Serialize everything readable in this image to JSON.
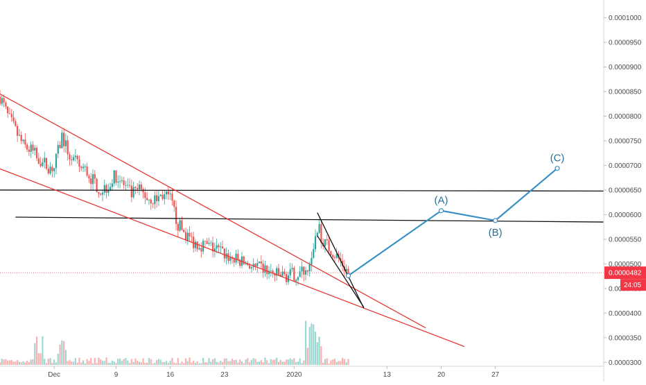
{
  "colors": {
    "up": "#26a69a",
    "down": "#ef5350",
    "projection": "#3c8fc4",
    "trendline": "#e53935",
    "level": "#111111",
    "price_badge": "#f23645"
  },
  "chart_data": {
    "type": "candlestick",
    "y_axis": {
      "position": "right",
      "ylim": [
        2.92e-05,
        0.0001036
      ],
      "ticks": [
        "0.0000300",
        "0.0000350",
        "0.0000400",
        "0.0000450",
        "0.0000500",
        "0.0000550",
        "0.0000600",
        "0.0000650",
        "0.0000700",
        "0.0000750",
        "0.0000800",
        "0.0000850",
        "0.0000900",
        "0.0000950",
        "0.0001000"
      ]
    },
    "x_axis": {
      "xlim": [
        "2019-11-24",
        "2020-02-10"
      ],
      "ticks": [
        {
          "date": "2019-12-01",
          "label": "Dec"
        },
        {
          "date": "2019-12-09",
          "label": "9"
        },
        {
          "date": "2019-12-16",
          "label": "16"
        },
        {
          "date": "2019-12-23",
          "label": "23"
        },
        {
          "date": "2020-01-01",
          "label": "2020"
        },
        {
          "date": "2020-01-13",
          "label": "13"
        },
        {
          "date": "2020-01-20",
          "label": "20"
        },
        {
          "date": "2020-01-27",
          "label": "27"
        }
      ]
    },
    "current_price": {
      "value": "0.0000482",
      "countdown": "24:05"
    },
    "price_path": [
      [
        "2019-11-24",
        8.4e-05
      ],
      [
        "2019-11-25",
        8e-05
      ],
      [
        "2019-11-26",
        7.7e-05
      ],
      [
        "2019-11-27",
        7.4e-05
      ],
      [
        "2019-11-28",
        7.3e-05
      ],
      [
        "2019-11-29",
        7.15e-05
      ],
      [
        "2019-11-30",
        7e-05
      ],
      [
        "2019-12-01",
        6.95e-05
      ],
      [
        "2019-12-02",
        7.6e-05
      ],
      [
        "2019-12-03",
        7.2e-05
      ],
      [
        "2019-12-04",
        7e-05
      ],
      [
        "2019-12-05",
        6.9e-05
      ],
      [
        "2019-12-06",
        6.7e-05
      ],
      [
        "2019-12-07",
        6.5e-05
      ],
      [
        "2019-12-08",
        6.6e-05
      ],
      [
        "2019-12-09",
        6.8e-05
      ],
      [
        "2019-12-10",
        6.6e-05
      ],
      [
        "2019-12-11",
        6.4e-05
      ],
      [
        "2019-12-12",
        6.5e-05
      ],
      [
        "2019-12-13",
        6.35e-05
      ],
      [
        "2019-12-14",
        6.3e-05
      ],
      [
        "2019-12-15",
        6.4e-05
      ],
      [
        "2019-12-16",
        6.3e-05
      ],
      [
        "2019-12-17",
        5.8e-05
      ],
      [
        "2019-12-18",
        5.6e-05
      ],
      [
        "2019-12-19",
        5.45e-05
      ],
      [
        "2019-12-20",
        5.4e-05
      ],
      [
        "2019-12-21",
        5.35e-05
      ],
      [
        "2019-12-22",
        5.3e-05
      ],
      [
        "2019-12-23",
        5.2e-05
      ],
      [
        "2019-12-24",
        5.1e-05
      ],
      [
        "2019-12-25",
        5.05e-05
      ],
      [
        "2019-12-26",
        5e-05
      ],
      [
        "2019-12-27",
        4.9e-05
      ],
      [
        "2019-12-28",
        4.9e-05
      ],
      [
        "2019-12-29",
        4.8e-05
      ],
      [
        "2019-12-30",
        4.76e-05
      ],
      [
        "2019-12-31",
        4.76e-05
      ],
      [
        "2020-01-01",
        4.78e-05
      ],
      [
        "2020-01-02",
        4.82e-05
      ],
      [
        "2020-01-03",
        5.05e-05
      ],
      [
        "2020-01-04",
        5.75e-05
      ],
      [
        "2020-01-05",
        5.4e-05
      ],
      [
        "2020-01-06",
        5.25e-05
      ],
      [
        "2020-01-07",
        5.05e-05
      ],
      [
        "2020-01-08",
        4.82e-05
      ]
    ],
    "volume_spikes": [
      {
        "date": "2019-11-29",
        "value": 0.6
      },
      {
        "date": "2019-12-02",
        "value": 0.5
      },
      {
        "date": "2020-01-03",
        "value": 1.0
      },
      {
        "date": "2020-01-04",
        "value": 0.85
      }
    ],
    "projection": {
      "points": [
        {
          "date": "2020-01-08",
          "value": 4.76e-05,
          "label": ""
        },
        {
          "date": "2020-01-20",
          "value": 6.08e-05,
          "label": "(A)"
        },
        {
          "date": "2020-01-27",
          "value": 5.88e-05,
          "label": "(B)"
        },
        {
          "date": "2020-02-04",
          "value": 6.94e-05,
          "label": "(C)"
        }
      ]
    },
    "horizontal_lines": [
      {
        "from": [
          "2019-11-24",
          6.5e-05
        ],
        "to": [
          "2020-02-10",
          6.48e-05
        ]
      },
      {
        "from": [
          "2019-11-26",
          5.95e-05
        ],
        "to": [
          "2020-02-10",
          5.85e-05
        ]
      }
    ],
    "trendlines": [
      {
        "color": "trendline",
        "from": [
          "2019-11-24",
          8.45e-05
        ],
        "to": [
          "2020-01-18",
          3.7e-05
        ]
      },
      {
        "color": "trendline",
        "from": [
          "2019-11-24",
          6.93e-05
        ],
        "to": [
          "2020-01-23",
          3.32e-05
        ]
      },
      {
        "color": "level",
        "from": [
          "2020-01-04",
          6.04e-05
        ],
        "to": [
          "2020-01-10",
          4.1e-05
        ]
      },
      {
        "color": "level",
        "from": [
          "2020-01-04",
          5.57e-05
        ],
        "to": [
          "2020-01-10",
          4.12e-05
        ]
      }
    ]
  }
}
